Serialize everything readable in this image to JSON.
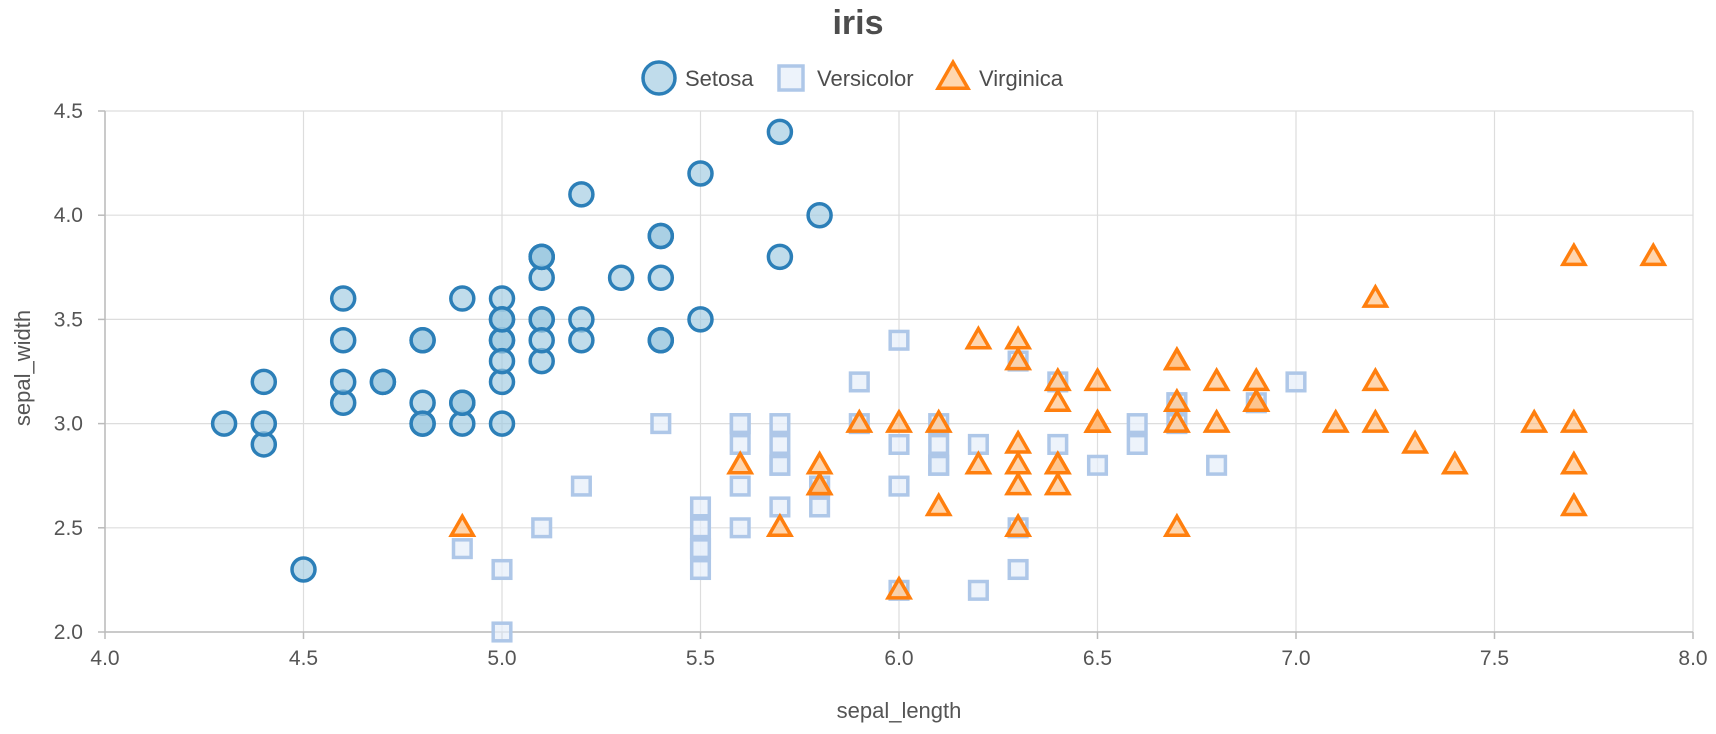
{
  "chart_data": {
    "type": "scatter",
    "title": "iris",
    "xlabel": "sepal_length",
    "ylabel": "sepal_width",
    "xlim": [
      4.0,
      8.0
    ],
    "ylim": [
      2.0,
      4.5
    ],
    "x_ticks": [
      "4.0",
      "4.5",
      "5.0",
      "5.5",
      "6.0",
      "6.5",
      "7.0",
      "7.5",
      "8.0"
    ],
    "y_ticks": [
      "2.0",
      "2.5",
      "3.0",
      "3.5",
      "4.0",
      "4.5"
    ],
    "grid": true,
    "legend_position": "top-center",
    "series": [
      {
        "name": "Setosa",
        "marker": "circle",
        "stroke": "#2c7fb8",
        "fill": "#9ecae1",
        "points": [
          [
            5.1,
            3.5
          ],
          [
            4.9,
            3.0
          ],
          [
            4.7,
            3.2
          ],
          [
            4.6,
            3.1
          ],
          [
            5.0,
            3.6
          ],
          [
            5.4,
            3.9
          ],
          [
            4.6,
            3.4
          ],
          [
            5.0,
            3.4
          ],
          [
            4.4,
            2.9
          ],
          [
            4.9,
            3.1
          ],
          [
            5.4,
            3.7
          ],
          [
            4.8,
            3.4
          ],
          [
            4.8,
            3.0
          ],
          [
            4.3,
            3.0
          ],
          [
            5.8,
            4.0
          ],
          [
            5.7,
            4.4
          ],
          [
            5.4,
            3.9
          ],
          [
            5.1,
            3.5
          ],
          [
            5.7,
            3.8
          ],
          [
            5.1,
            3.8
          ],
          [
            5.4,
            3.4
          ],
          [
            5.1,
            3.7
          ],
          [
            4.6,
            3.6
          ],
          [
            5.1,
            3.3
          ],
          [
            4.8,
            3.4
          ],
          [
            5.0,
            3.0
          ],
          [
            5.0,
            3.4
          ],
          [
            5.2,
            3.5
          ],
          [
            5.2,
            3.4
          ],
          [
            4.7,
            3.2
          ],
          [
            4.8,
            3.1
          ],
          [
            5.4,
            3.4
          ],
          [
            5.2,
            4.1
          ],
          [
            5.5,
            4.2
          ],
          [
            4.9,
            3.1
          ],
          [
            5.0,
            3.2
          ],
          [
            5.5,
            3.5
          ],
          [
            4.9,
            3.6
          ],
          [
            4.4,
            3.0
          ],
          [
            5.1,
            3.4
          ],
          [
            5.0,
            3.5
          ],
          [
            4.5,
            2.3
          ],
          [
            4.4,
            3.2
          ],
          [
            5.0,
            3.5
          ],
          [
            5.1,
            3.8
          ],
          [
            4.8,
            3.0
          ],
          [
            5.1,
            3.8
          ],
          [
            4.6,
            3.2
          ],
          [
            5.3,
            3.7
          ],
          [
            5.0,
            3.3
          ]
        ]
      },
      {
        "name": "Versicolor",
        "marker": "square",
        "stroke": "#aec7e8",
        "fill": "#e6eef9",
        "points": [
          [
            7.0,
            3.2
          ],
          [
            6.4,
            3.2
          ],
          [
            6.9,
            3.1
          ],
          [
            5.5,
            2.3
          ],
          [
            6.5,
            2.8
          ],
          [
            5.7,
            2.8
          ],
          [
            6.3,
            3.3
          ],
          [
            4.9,
            2.4
          ],
          [
            6.6,
            2.9
          ],
          [
            5.2,
            2.7
          ],
          [
            5.0,
            2.0
          ],
          [
            5.9,
            3.0
          ],
          [
            6.0,
            2.2
          ],
          [
            6.1,
            2.9
          ],
          [
            5.6,
            2.9
          ],
          [
            6.7,
            3.1
          ],
          [
            5.6,
            3.0
          ],
          [
            5.8,
            2.7
          ],
          [
            6.2,
            2.2
          ],
          [
            5.6,
            2.5
          ],
          [
            5.9,
            3.2
          ],
          [
            6.1,
            2.8
          ],
          [
            6.3,
            2.5
          ],
          [
            6.1,
            2.8
          ],
          [
            6.4,
            2.9
          ],
          [
            6.6,
            3.0
          ],
          [
            6.8,
            2.8
          ],
          [
            6.7,
            3.0
          ],
          [
            6.0,
            2.9
          ],
          [
            5.7,
            2.6
          ],
          [
            5.5,
            2.4
          ],
          [
            5.5,
            2.4
          ],
          [
            5.8,
            2.7
          ],
          [
            6.0,
            2.7
          ],
          [
            5.4,
            3.0
          ],
          [
            6.0,
            3.4
          ],
          [
            6.7,
            3.1
          ],
          [
            6.3,
            2.3
          ],
          [
            5.6,
            3.0
          ],
          [
            5.5,
            2.5
          ],
          [
            5.5,
            2.6
          ],
          [
            6.1,
            3.0
          ],
          [
            5.8,
            2.6
          ],
          [
            5.0,
            2.3
          ],
          [
            5.6,
            2.7
          ],
          [
            5.7,
            3.0
          ],
          [
            5.7,
            2.9
          ],
          [
            6.2,
            2.9
          ],
          [
            5.1,
            2.5
          ],
          [
            5.7,
            2.8
          ]
        ]
      },
      {
        "name": "Virginica",
        "marker": "triangle",
        "stroke": "#ff7f0e",
        "fill": "#ffbb78",
        "points": [
          [
            6.3,
            3.3
          ],
          [
            5.8,
            2.7
          ],
          [
            7.1,
            3.0
          ],
          [
            6.3,
            2.9
          ],
          [
            6.5,
            3.0
          ],
          [
            7.6,
            3.0
          ],
          [
            4.9,
            2.5
          ],
          [
            7.3,
            2.9
          ],
          [
            6.7,
            2.5
          ],
          [
            7.2,
            3.6
          ],
          [
            6.5,
            3.2
          ],
          [
            6.4,
            2.7
          ],
          [
            6.8,
            3.0
          ],
          [
            5.7,
            2.5
          ],
          [
            5.8,
            2.8
          ],
          [
            6.4,
            3.2
          ],
          [
            6.5,
            3.0
          ],
          [
            7.7,
            3.8
          ],
          [
            7.7,
            2.6
          ],
          [
            6.0,
            2.2
          ],
          [
            6.9,
            3.2
          ],
          [
            5.6,
            2.8
          ],
          [
            7.7,
            2.8
          ],
          [
            6.3,
            2.7
          ],
          [
            6.7,
            3.3
          ],
          [
            7.2,
            3.2
          ],
          [
            6.2,
            2.8
          ],
          [
            6.1,
            3.0
          ],
          [
            6.4,
            2.8
          ],
          [
            7.2,
            3.0
          ],
          [
            7.4,
            2.8
          ],
          [
            7.9,
            3.8
          ],
          [
            6.4,
            2.8
          ],
          [
            6.3,
            2.8
          ],
          [
            6.1,
            2.6
          ],
          [
            7.7,
            3.0
          ],
          [
            6.3,
            3.4
          ],
          [
            6.4,
            3.1
          ],
          [
            6.0,
            3.0
          ],
          [
            6.9,
            3.1
          ],
          [
            6.7,
            3.1
          ],
          [
            6.9,
            3.1
          ],
          [
            5.8,
            2.7
          ],
          [
            6.8,
            3.2
          ],
          [
            6.7,
            3.3
          ],
          [
            6.7,
            3.0
          ],
          [
            6.3,
            2.5
          ],
          [
            6.5,
            3.0
          ],
          [
            6.2,
            3.4
          ],
          [
            5.9,
            3.0
          ]
        ]
      }
    ]
  }
}
